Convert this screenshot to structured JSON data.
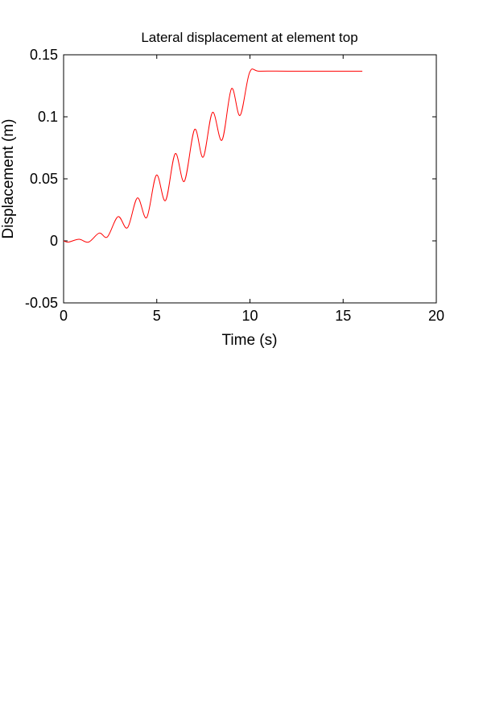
{
  "chart_data": {
    "type": "line",
    "title": "Lateral displacement at element top",
    "xlabel": "Time (s)",
    "ylabel": "Displacement (m)",
    "xlim": [
      0,
      20
    ],
    "ylim": [
      -0.05,
      0.15
    ],
    "xticks": [
      0,
      5,
      10,
      15,
      20
    ],
    "xtick_labels": [
      "0",
      "5",
      "10",
      "15",
      "20"
    ],
    "yticks": [
      -0.05,
      0,
      0.05,
      0.1,
      0.15
    ],
    "ytick_labels": [
      "-0.05",
      "0",
      "0.05",
      "0.1",
      "0.15"
    ],
    "grid": false,
    "series": [
      {
        "name": "displacement",
        "color": "#ff0000",
        "x": [
          0,
          0.26,
          0.83,
          1.34,
          1.91,
          2.35,
          2.92,
          3.43,
          3.96,
          4.46,
          4.98,
          5.47,
          5.99,
          6.48,
          7.03,
          7.49,
          7.99,
          8.5,
          9.01,
          9.47,
          9.98,
          10.5,
          12,
          14,
          16.03
        ],
        "y": [
          0,
          -0.001,
          0.0013,
          -0.001,
          0.0063,
          0.0032,
          0.0195,
          0.0106,
          0.0346,
          0.0188,
          0.053,
          0.0325,
          0.0703,
          0.048,
          0.0898,
          0.0675,
          0.1036,
          0.0812,
          0.1227,
          0.1011,
          0.1357,
          0.1368,
          0.1368,
          0.1368,
          0.1368
        ]
      }
    ]
  }
}
